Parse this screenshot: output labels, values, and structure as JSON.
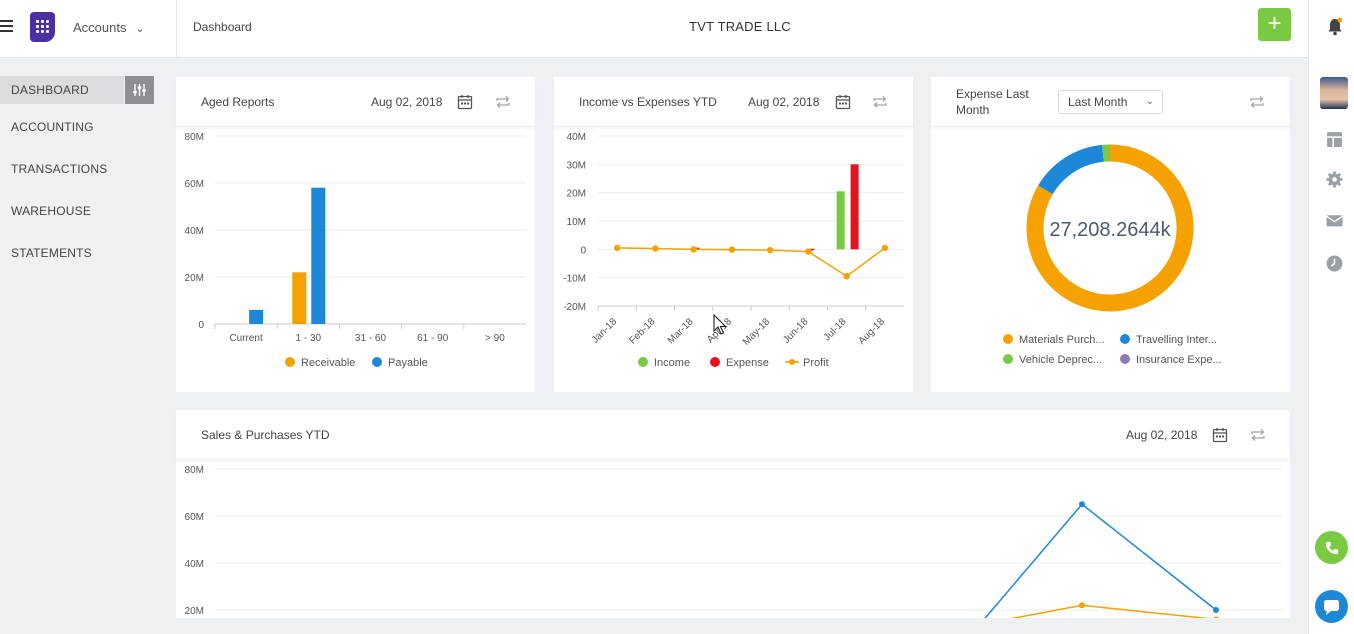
{
  "header": {
    "module": "Accounts",
    "breadcrumb": "Dashboard",
    "company": "TVT TRADE LLC"
  },
  "sidebar": {
    "items": [
      {
        "label": "DASHBOARD",
        "active": true
      },
      {
        "label": "ACCOUNTING"
      },
      {
        "label": "TRANSACTIONS"
      },
      {
        "label": "WAREHOUSE"
      },
      {
        "label": "STATEMENTS"
      }
    ]
  },
  "rail": {
    "icons": [
      "avatar",
      "layout-icon",
      "gear-icon",
      "mail-icon",
      "clock-icon",
      "phone-icon",
      "chat-icon"
    ]
  },
  "colors": {
    "accent_green": "#7ac943",
    "receivable": "#f5a100",
    "payable": "#1e88d8",
    "income": "#7ac943",
    "expense": "#e8101e",
    "profit": "#f5a100",
    "travel": "#1e88d8",
    "insurance": "#8e7bb0",
    "sales_line": "#1e88d8"
  },
  "cards": {
    "aged": {
      "title": "Aged Reports",
      "date": "Aug 02, 2018"
    },
    "income": {
      "title": "Income vs Expenses YTD",
      "date": "Aug 02, 2018"
    },
    "expense": {
      "title_line1": "Expense Last",
      "title_line2": "Month",
      "select": "Last Month",
      "center_value": "27,208.2644k"
    },
    "sales": {
      "title": "Sales & Purchases YTD",
      "date": "Aug 02, 2018"
    }
  },
  "chart_data": [
    {
      "type": "bar",
      "categories": [
        "Current",
        "1 - 30",
        "31 - 60",
        "61 - 90",
        "> 90"
      ],
      "series": [
        {
          "name": "Receivable",
          "values": [
            0,
            22,
            0,
            0,
            0
          ]
        },
        {
          "name": "Payable",
          "values": [
            6,
            58,
            0,
            0,
            0
          ]
        }
      ],
      "yticks": [
        "0",
        "20M",
        "40M",
        "60M",
        "80M"
      ],
      "ylim": [
        0,
        80
      ],
      "grid": true,
      "legend": "bottom"
    },
    {
      "type": "bar",
      "categories": [
        "Jan-18",
        "Feb-18",
        "Mar-18",
        "Apr-18",
        "May-18",
        "Jun-18",
        "Jul-18",
        "Aug-18"
      ],
      "series": [
        {
          "name": "Income",
          "values": [
            0,
            0,
            0,
            0,
            0,
            0,
            20.5,
            0
          ]
        },
        {
          "name": "Expense",
          "values": [
            0,
            0,
            0.6,
            0,
            0,
            0.2,
            30,
            0
          ]
        },
        {
          "name": "Profit",
          "values": [
            0.5,
            0.3,
            0,
            -0.1,
            -0.3,
            -0.8,
            -9.5,
            0.5
          ]
        }
      ],
      "profit_type": "line",
      "yticks": [
        "-20M",
        "-10M",
        "0",
        "10M",
        "20M",
        "30M",
        "40M"
      ],
      "ylim": [
        -20,
        40
      ],
      "grid": true,
      "legend": "bottom"
    },
    {
      "type": "pie",
      "donut": true,
      "center_label": "27,208.2644k",
      "slices": [
        {
          "name": "Materials Purch...",
          "value": 83.5
        },
        {
          "name": "Travelling Inter...",
          "value": 15
        },
        {
          "name": "Vehicle Deprec...",
          "value": 1.5
        },
        {
          "name": "Insurance Expe...",
          "value": 0
        }
      ],
      "legend": "bottom"
    },
    {
      "type": "line",
      "series": [
        {
          "values": [
            15,
            65,
            20
          ]
        },
        {
          "values": [
            14,
            22,
            16
          ]
        }
      ],
      "yticks": [
        "20M",
        "40M",
        "60M",
        "80M"
      ],
      "ylim": [
        0,
        80
      ],
      "grid": true
    }
  ]
}
